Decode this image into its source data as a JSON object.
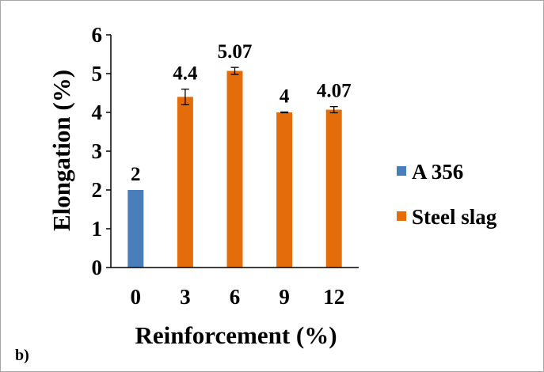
{
  "panel_label": "b)",
  "chart_data": {
    "type": "bar",
    "categories": [
      "0",
      "3",
      "6",
      "9",
      "12"
    ],
    "xlabel": "Reinforcement (%)",
    "ylabel": "Elongation (%)",
    "ylim": [
      0,
      6
    ],
    "yticks": [
      "0",
      "1",
      "2",
      "3",
      "4",
      "5",
      "6"
    ],
    "grid": false,
    "legend_position": "right",
    "series": [
      {
        "name": "A 356",
        "color": "#4a7ebb",
        "values": [
          2,
          null,
          null,
          null,
          null
        ],
        "labels": [
          "2",
          null,
          null,
          null,
          null
        ],
        "errors": [
          0,
          null,
          null,
          null,
          null
        ]
      },
      {
        "name": "Steel slag",
        "color": "#e46c0a",
        "values": [
          null,
          4.4,
          5.07,
          4,
          4.07
        ],
        "labels": [
          null,
          "4.4",
          "5.07",
          "4",
          "4.07"
        ],
        "errors": [
          null,
          0.2,
          0.09,
          0.01,
          0.08
        ]
      }
    ]
  }
}
